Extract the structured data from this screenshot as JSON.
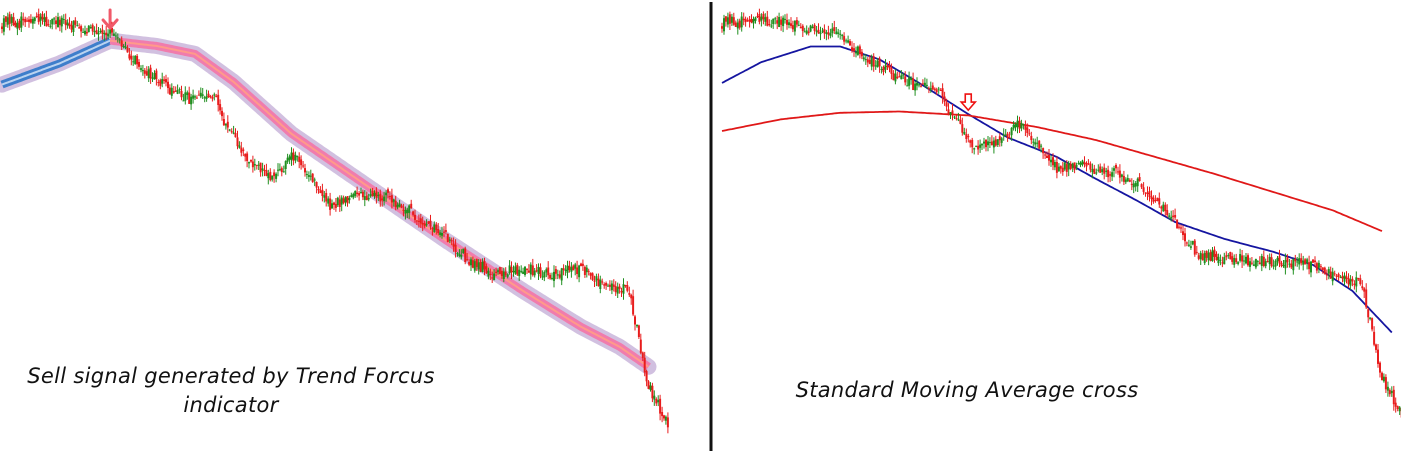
{
  "panels": [
    {
      "id": "left",
      "caption_lines": [
        "Sell signal generated by Trend Forcus",
        "indicator"
      ],
      "signal": {
        "label": "",
        "color": "#f05a6a",
        "bar": 56
      }
    },
    {
      "id": "right",
      "caption_lines": [
        "Standard Moving Average cross"
      ],
      "signal": {
        "label": "",
        "color": "#ee1111",
        "bar": 125
      }
    }
  ],
  "chart_data": [
    {
      "type": "candlestick",
      "panel": "left",
      "title": "",
      "candle_colors": {
        "bullish": "#1f8f1f",
        "bearish": "#e81c1c"
      },
      "close_path": [
        [
          0,
          1.08
        ],
        [
          20,
          1.1
        ],
        [
          35,
          1.07
        ],
        [
          55,
          1.02
        ],
        [
          70,
          0.78
        ],
        [
          82,
          0.63
        ],
        [
          95,
          0.52
        ],
        [
          110,
          0.52
        ],
        [
          118,
          0.26
        ],
        [
          128,
          0.04
        ],
        [
          140,
          -0.1
        ],
        [
          150,
          0.08
        ],
        [
          158,
          -0.02
        ],
        [
          170,
          -0.3
        ],
        [
          180,
          -0.22
        ],
        [
          192,
          -0.2
        ],
        [
          205,
          -0.26
        ],
        [
          215,
          -0.38
        ],
        [
          230,
          -0.52
        ],
        [
          242,
          -0.7
        ],
        [
          255,
          -0.8
        ],
        [
          270,
          -0.76
        ],
        [
          285,
          -0.8
        ],
        [
          300,
          -0.76
        ],
        [
          312,
          -0.9
        ],
        [
          325,
          -0.93
        ],
        [
          335,
          -1.65
        ],
        [
          345,
          -1.92
        ]
      ],
      "indicator": {
        "name": "Trend Focus",
        "colors": {
          "up": "#3e7ecb",
          "down": "#f07cad",
          "halo": "#c9b5db"
        },
        "signal_bar": 56,
        "path": [
          [
            0,
            0.62
          ],
          [
            30,
            0.78
          ],
          [
            56,
            0.95
          ],
          [
            80,
            0.91
          ],
          [
            100,
            0.85
          ],
          [
            120,
            0.64
          ],
          [
            150,
            0.25
          ],
          [
            190,
            -0.15
          ],
          [
            230,
            -0.55
          ],
          [
            270,
            -0.93
          ],
          [
            300,
            -1.2
          ],
          [
            320,
            -1.35
          ],
          [
            335,
            -1.5
          ]
        ]
      }
    },
    {
      "type": "candlestick",
      "panel": "right",
      "title": "",
      "candle_colors": {
        "bullish": "#1f8f1f",
        "bearish": "#e81c1c"
      },
      "close_path": [
        [
          0,
          1.08
        ],
        [
          20,
          1.1
        ],
        [
          35,
          1.07
        ],
        [
          55,
          1.02
        ],
        [
          70,
          0.85
        ],
        [
          80,
          0.74
        ],
        [
          95,
          0.62
        ],
        [
          110,
          0.55
        ],
        [
          118,
          0.34
        ],
        [
          128,
          0.12
        ],
        [
          140,
          0.15
        ],
        [
          150,
          0.3
        ],
        [
          158,
          0.2
        ],
        [
          170,
          -0.05
        ],
        [
          180,
          0.0
        ],
        [
          192,
          -0.05
        ],
        [
          205,
          -0.1
        ],
        [
          215,
          -0.2
        ],
        [
          230,
          -0.45
        ],
        [
          242,
          -0.7
        ],
        [
          255,
          -0.72
        ],
        [
          270,
          -0.75
        ],
        [
          285,
          -0.75
        ],
        [
          300,
          -0.78
        ],
        [
          312,
          -0.88
        ],
        [
          325,
          -0.93
        ],
        [
          335,
          -1.65
        ],
        [
          345,
          -1.92
        ]
      ],
      "moving_averages": [
        {
          "kind": "fast",
          "color": "#1515a0",
          "path": [
            [
              0,
              0.62
            ],
            [
              20,
              0.78
            ],
            [
              45,
              0.9
            ],
            [
              60,
              0.9
            ],
            [
              80,
              0.8
            ],
            [
              100,
              0.62
            ],
            [
              125,
              0.38
            ],
            [
              145,
              0.2
            ],
            [
              170,
              0.05
            ],
            [
              190,
              -0.12
            ],
            [
              210,
              -0.28
            ],
            [
              230,
              -0.45
            ],
            [
              255,
              -0.58
            ],
            [
              280,
              -0.68
            ],
            [
              300,
              -0.78
            ],
            [
              320,
              -0.98
            ],
            [
              340,
              -1.3
            ]
          ]
        },
        {
          "kind": "slow",
          "color": "#e01818",
          "path": [
            [
              0,
              0.25
            ],
            [
              30,
              0.34
            ],
            [
              60,
              0.39
            ],
            [
              90,
              0.4
            ],
            [
              125,
              0.37
            ],
            [
              160,
              0.28
            ],
            [
              190,
              0.18
            ],
            [
              220,
              0.05
            ],
            [
              250,
              -0.08
            ],
            [
              280,
              -0.22
            ],
            [
              310,
              -0.36
            ],
            [
              335,
              -0.52
            ]
          ]
        }
      ]
    }
  ]
}
